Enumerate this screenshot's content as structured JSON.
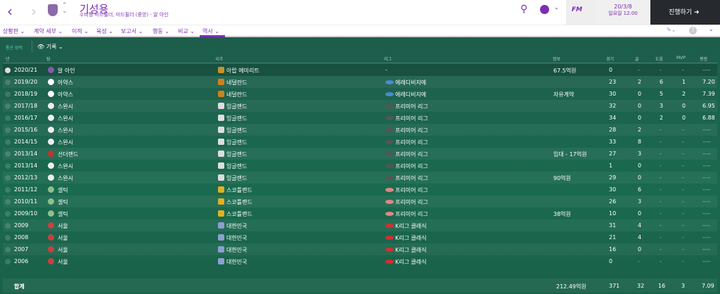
{
  "header": {
    "player_name": "기성용",
    "subtitle": "수비형 미드필더, 미드필더 (중앙) - 알 아인",
    "date": "20/3/8",
    "day_time": "일요일 12:00",
    "continue_label": "진행하기",
    "fm_label": "FM"
  },
  "nav": [
    "상황판",
    "계약 세부",
    "이적",
    "육성",
    "보고서",
    "행동",
    "비교",
    "역사"
  ],
  "active_nav": "역사",
  "sub": {
    "career": "통산 성적",
    "view": "기록"
  },
  "columns": {
    "year": "년",
    "team": "팀",
    "nation": "국가",
    "league": "리그",
    "info": "정보",
    "apps": "경기",
    "goals": "골",
    "assists": "도움",
    "mvp": "MVP",
    "rating": "평점"
  },
  "rows": [
    {
      "year": "2020/21",
      "team": "알 아인",
      "nation": "아랍 에미리트",
      "league": "-",
      "info": "67.5억원",
      "apps": "0",
      "goals": "-",
      "assists": "-",
      "mvp": "-",
      "rating": "----",
      "tc": "#8a5aa8",
      "nc": "#c8922a",
      "lc": ""
    },
    {
      "year": "2019/20",
      "team": "아약스",
      "nation": "네덜란드",
      "league": "에레디비지에",
      "info": "",
      "apps": "23",
      "goals": "2",
      "assists": "6",
      "mvp": "1",
      "rating": "7.20",
      "tc": "#fff",
      "nc": "#d08020",
      "lc": "#4a8ad0"
    },
    {
      "year": "2018/19",
      "team": "아약스",
      "nation": "네덜란드",
      "league": "에레디비지에",
      "info": "자유계약",
      "apps": "30",
      "goals": "0",
      "assists": "5",
      "mvp": "2",
      "rating": "7.39",
      "tc": "#fff",
      "nc": "#d08020",
      "lc": "#4a8ad0"
    },
    {
      "year": "2017/18",
      "team": "스완시",
      "nation": "잉글랜드",
      "league": "프리미어 리그",
      "info": "",
      "apps": "32",
      "goals": "0",
      "assists": "3",
      "mvp": "0",
      "rating": "6.95",
      "tc": "#eee",
      "nc": "#ddd",
      "lc": "#555"
    },
    {
      "year": "2016/17",
      "team": "스완시",
      "nation": "잉글랜드",
      "league": "프리미어 리그",
      "info": "",
      "apps": "34",
      "goals": "0",
      "assists": "2",
      "mvp": "0",
      "rating": "6.88",
      "tc": "#eee",
      "nc": "#ddd",
      "lc": "#555"
    },
    {
      "year": "2015/16",
      "team": "스완시",
      "nation": "잉글랜드",
      "league": "프리미어 리그",
      "info": "",
      "apps": "28",
      "goals": "2",
      "assists": "-",
      "mvp": "-",
      "rating": "----",
      "tc": "#eee",
      "nc": "#ddd",
      "lc": "#555"
    },
    {
      "year": "2014/15",
      "team": "스완시",
      "nation": "잉글랜드",
      "league": "프리미어 리그",
      "info": "",
      "apps": "33",
      "goals": "8",
      "assists": "-",
      "mvp": "-",
      "rating": "----",
      "tc": "#eee",
      "nc": "#ddd",
      "lc": "#555"
    },
    {
      "year": "2013/14",
      "team": "선더랜드",
      "nation": "잉글랜드",
      "league": "프리미어 리그",
      "info": "임대 - 17억원",
      "apps": "27",
      "goals": "3",
      "assists": "-",
      "mvp": "-",
      "rating": "----",
      "tc": "#c83030",
      "nc": "#ddd",
      "lc": "#555"
    },
    {
      "year": "2013/14",
      "team": "스완시",
      "nation": "잉글랜드",
      "league": "프리미어 리그",
      "info": "",
      "apps": "1",
      "goals": "0",
      "assists": "-",
      "mvp": "-",
      "rating": "----",
      "tc": "#eee",
      "nc": "#ddd",
      "lc": "#555"
    },
    {
      "year": "2012/13",
      "team": "스완시",
      "nation": "잉글랜드",
      "league": "프리미어 리그",
      "info": "90억원",
      "apps": "29",
      "goals": "0",
      "assists": "-",
      "mvp": "-",
      "rating": "----",
      "tc": "#eee",
      "nc": "#ddd",
      "lc": "#555"
    },
    {
      "year": "2011/12",
      "team": "셀틱",
      "nation": "스코틀랜드",
      "league": "프리미어 리그",
      "info": "",
      "apps": "30",
      "goals": "6",
      "assists": "-",
      "mvp": "-",
      "rating": "----",
      "tc": "#8fbf8f",
      "nc": "#e0b020",
      "lc": "#d88"
    },
    {
      "year": "2010/11",
      "team": "셀틱",
      "nation": "스코틀랜드",
      "league": "프리미어 리그",
      "info": "",
      "apps": "26",
      "goals": "3",
      "assists": "-",
      "mvp": "-",
      "rating": "----",
      "tc": "#8fbf8f",
      "nc": "#e0b020",
      "lc": "#d88"
    },
    {
      "year": "2009/10",
      "team": "셀틱",
      "nation": "스코틀랜드",
      "league": "프리미어 리그",
      "info": "38억원",
      "apps": "10",
      "goals": "0",
      "assists": "-",
      "mvp": "-",
      "rating": "----",
      "tc": "#8fbf8f",
      "nc": "#e0b020",
      "lc": "#d88"
    },
    {
      "year": "2009",
      "team": "서울",
      "nation": "대한민국",
      "league": "K리그 클래식",
      "info": "",
      "apps": "31",
      "goals": "4",
      "assists": "-",
      "mvp": "-",
      "rating": "----",
      "tc": "#c84040",
      "nc": "#8aa0d0",
      "lc": "#d03030"
    },
    {
      "year": "2008",
      "team": "서울",
      "nation": "대한민국",
      "league": "K리그 클래식",
      "info": "",
      "apps": "21",
      "goals": "4",
      "assists": "-",
      "mvp": "-",
      "rating": "----",
      "tc": "#c84040",
      "nc": "#8aa0d0",
      "lc": "#d03030"
    },
    {
      "year": "2007",
      "team": "서울",
      "nation": "대한민국",
      "league": "K리그 클래식",
      "info": "",
      "apps": "16",
      "goals": "0",
      "assists": "-",
      "mvp": "-",
      "rating": "----",
      "tc": "#c84040",
      "nc": "#8aa0d0",
      "lc": "#d03030"
    },
    {
      "year": "2006",
      "team": "서울",
      "nation": "대한민국",
      "league": "K리그 클래식",
      "info": "",
      "apps": "0",
      "goals": "-",
      "assists": "-",
      "mvp": "-",
      "rating": "----",
      "tc": "#c84040",
      "nc": "#8aa0d0",
      "lc": "#d03030"
    }
  ],
  "total": {
    "label": "합계",
    "info": "212.49억원",
    "apps": "371",
    "goals": "32",
    "assists": "16",
    "mvp": "3",
    "rating": "7.09"
  },
  "colors": {
    "accent": "#7b2fb5",
    "continue_bg": "#262a2e",
    "table_bg": "#1b5e48"
  }
}
